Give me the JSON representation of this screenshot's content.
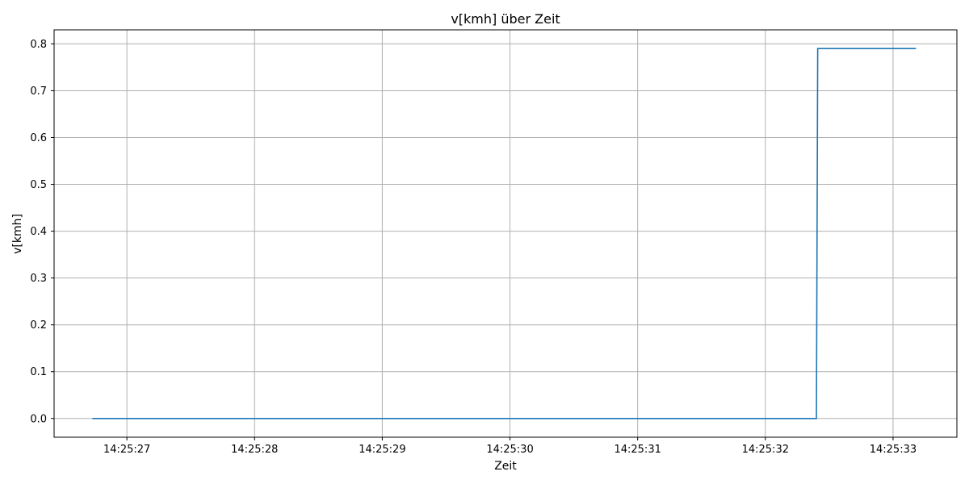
{
  "chart_data": {
    "type": "line",
    "title": "v[kmh] über Zeit",
    "xlabel": "Zeit",
    "ylabel": "v[kmh]",
    "grid": true,
    "x_ticks": [
      "14:25:27",
      "14:25:28",
      "14:25:29",
      "14:25:30",
      "14:25:31",
      "14:25:32",
      "14:25:33"
    ],
    "y_ticks": [
      "0.0",
      "0.1",
      "0.2",
      "0.3",
      "0.4",
      "0.5",
      "0.6",
      "0.7",
      "0.8"
    ],
    "xlim": [
      "14:25:26.43",
      "14:25:33.5"
    ],
    "ylim": [
      -0.04,
      0.83
    ],
    "series": [
      {
        "color": "#1f77b4",
        "x": [
          "14:25:26.73",
          "14:25:32.40",
          "14:25:32.41",
          "14:25:33.18"
        ],
        "y": [
          0.0,
          0.0,
          0.79,
          0.79
        ]
      }
    ]
  }
}
